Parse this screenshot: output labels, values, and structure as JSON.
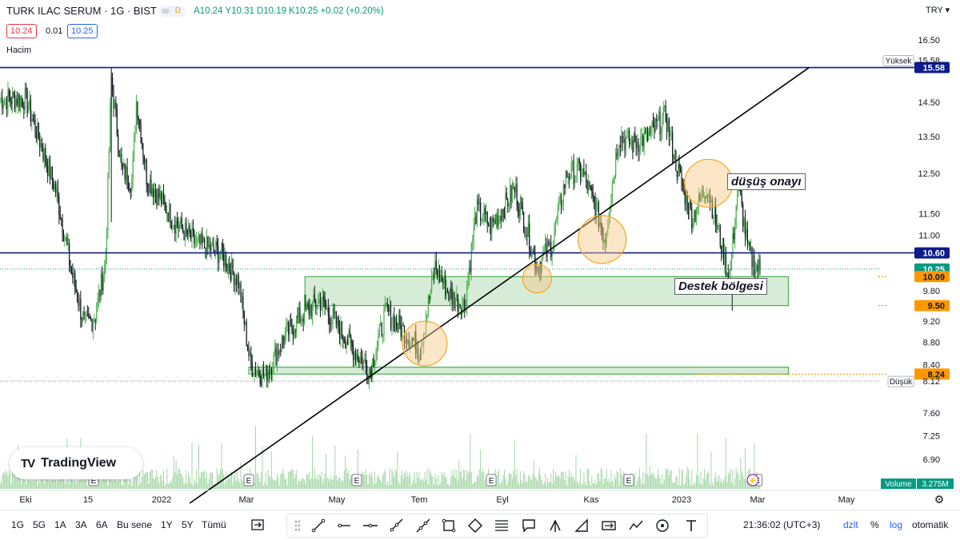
{
  "header": {
    "title": "TURK ILAC SERUM · 1G · BIST",
    "badge": "D",
    "ohlc": {
      "a": "A10.24",
      "y": "Y10.31",
      "d": "D10.19",
      "k": "K10.25",
      "chg": "+0.02 (+0.20%)"
    },
    "bid": "10.24",
    "spread": "0.01",
    "ask": "10.25",
    "volume_label": "Hacim",
    "currency": "TRY"
  },
  "colors": {
    "up": "#4caf50",
    "down": "#131722",
    "hline": "#0d1b8c",
    "zone_fill": "#c8e6c9",
    "zone_stroke": "#4caf50",
    "orange": "#ff9800",
    "circle": "#f9c784",
    "trend": "#000000",
    "volume": "#a5d6a7"
  },
  "chart_data": {
    "type": "candlestick",
    "symbol": "TURK ILAC SERUM",
    "timeframe": "1G",
    "exchange": "BIST",
    "y_scale": "log",
    "ylim": [
      6.3,
      16.9
    ],
    "y_ticks": [
      "16.50",
      "15.58",
      "14.50",
      "13.50",
      "12.50",
      "11.50",
      "11.00",
      "10.60",
      "10.25",
      "10.09",
      "9.80",
      "9.50",
      "9.20",
      "8.80",
      "8.40",
      "8.24",
      "8.12",
      "7.60",
      "7.25",
      "6.90"
    ],
    "x_ticks": [
      "Eki",
      "15",
      "2022",
      "Mar",
      "May",
      "Tem",
      "Eyl",
      "Kas",
      "2023",
      "Mar",
      "May"
    ],
    "series_path_points": [
      [
        "2021-10-01",
        14.6
      ],
      [
        "2021-10-12",
        13.2
      ],
      [
        "2021-10-22",
        12.0
      ],
      [
        "2021-11-01",
        10.2
      ],
      [
        "2021-11-10",
        9.1
      ],
      [
        "2021-11-17",
        9.3
      ],
      [
        "2021-11-24",
        10.4
      ],
      [
        "2021-11-28",
        15.2
      ],
      [
        "2021-12-05",
        12.6
      ],
      [
        "2021-12-12",
        12.3
      ],
      [
        "2021-12-15",
        14.6
      ],
      [
        "2021-12-22",
        12.4
      ],
      [
        "2022-01-10",
        11.3
      ],
      [
        "2022-01-25",
        10.8
      ],
      [
        "2022-02-10",
        10.6
      ],
      [
        "2022-02-22",
        10.0
      ],
      [
        "2022-03-02",
        8.4
      ],
      [
        "2022-03-12",
        8.2
      ],
      [
        "2022-03-25",
        8.9
      ],
      [
        "2022-04-05",
        9.3
      ],
      [
        "2022-04-18",
        9.6
      ],
      [
        "2022-04-28",
        9.2
      ],
      [
        "2022-05-10",
        8.7
      ],
      [
        "2022-05-22",
        8.3
      ],
      [
        "2022-06-02",
        9.4
      ],
      [
        "2022-06-14",
        9.0
      ],
      [
        "2022-06-25",
        8.7
      ],
      [
        "2022-07-05",
        10.3
      ],
      [
        "2022-07-15",
        9.7
      ],
      [
        "2022-07-25",
        9.5
      ],
      [
        "2022-08-02",
        11.6
      ],
      [
        "2022-08-12",
        11.2
      ],
      [
        "2022-08-28",
        12.1
      ],
      [
        "2022-09-06",
        11.0
      ],
      [
        "2022-09-12",
        10.3
      ],
      [
        "2022-09-22",
        10.8
      ],
      [
        "2022-10-02",
        12.5
      ],
      [
        "2022-10-12",
        12.6
      ],
      [
        "2022-10-22",
        11.6
      ],
      [
        "2022-10-28",
        10.9
      ],
      [
        "2022-11-06",
        13.5
      ],
      [
        "2022-11-16",
        13.3
      ],
      [
        "2022-11-26",
        13.5
      ],
      [
        "2022-12-08",
        14.1
      ],
      [
        "2022-12-16",
        12.6
      ],
      [
        "2022-12-26",
        11.4
      ],
      [
        "2023-01-05",
        12.2
      ],
      [
        "2023-01-14",
        10.9
      ],
      [
        "2023-01-20",
        10.0
      ],
      [
        "2023-01-26",
        12.2
      ],
      [
        "2023-02-02",
        10.6
      ],
      [
        "2023-02-07",
        10.3
      ],
      [
        "2023-02-10",
        10.25
      ]
    ],
    "horizontal_lines": [
      {
        "label": "15.58",
        "value": 15.58
      },
      {
        "label": "10.60",
        "value": 10.6
      }
    ],
    "price_labels": [
      {
        "label": "10.25",
        "value": 10.25,
        "style": "last"
      },
      {
        "label": "10.09",
        "value": 10.09,
        "style": "orange"
      },
      {
        "label": "9.50",
        "value": 9.5,
        "style": "orange"
      },
      {
        "label": "8.24",
        "value": 8.24,
        "style": "orange"
      }
    ],
    "high_label": "Yüksek",
    "high_value": "15.58",
    "low_label": "Düşük",
    "low_value": "8.12",
    "support_zones": [
      {
        "from_date": "2022-04-08",
        "to_date": "2023-03-01",
        "low": 9.5,
        "high": 10.09
      },
      {
        "from_date": "2022-03-01",
        "to_date": "2023-03-01",
        "low": 8.24,
        "high": 8.36
      }
    ],
    "trendline": [
      [
        "2022-01-20",
        6.3
      ],
      [
        "2023-03-15",
        15.58
      ]
    ],
    "highlight_circles": [
      [
        "2022-06-28",
        8.78
      ],
      [
        "2022-09-12",
        10.05
      ],
      [
        "2022-10-26",
        10.9
      ],
      [
        "2023-01-06",
        12.25
      ]
    ],
    "annotations": [
      "düşüş onayı",
      "Destek bölgesi"
    ],
    "volume": {
      "label": "Volume",
      "value": "3.275M"
    },
    "earnings_markers": [
      "2021-11-16",
      "2022-03-01",
      "2022-05-13",
      "2022-08-12",
      "2022-11-13",
      "2023-02-08"
    ]
  },
  "bottom": {
    "timeframes": [
      "1G",
      "5G",
      "1A",
      "3A",
      "6A",
      "Bu sene",
      "1Y",
      "5Y",
      "Tümü"
    ],
    "clock": "21:36:02 (UTC+3)",
    "options": [
      "dzlt",
      "%",
      "log",
      "otomatik"
    ]
  }
}
